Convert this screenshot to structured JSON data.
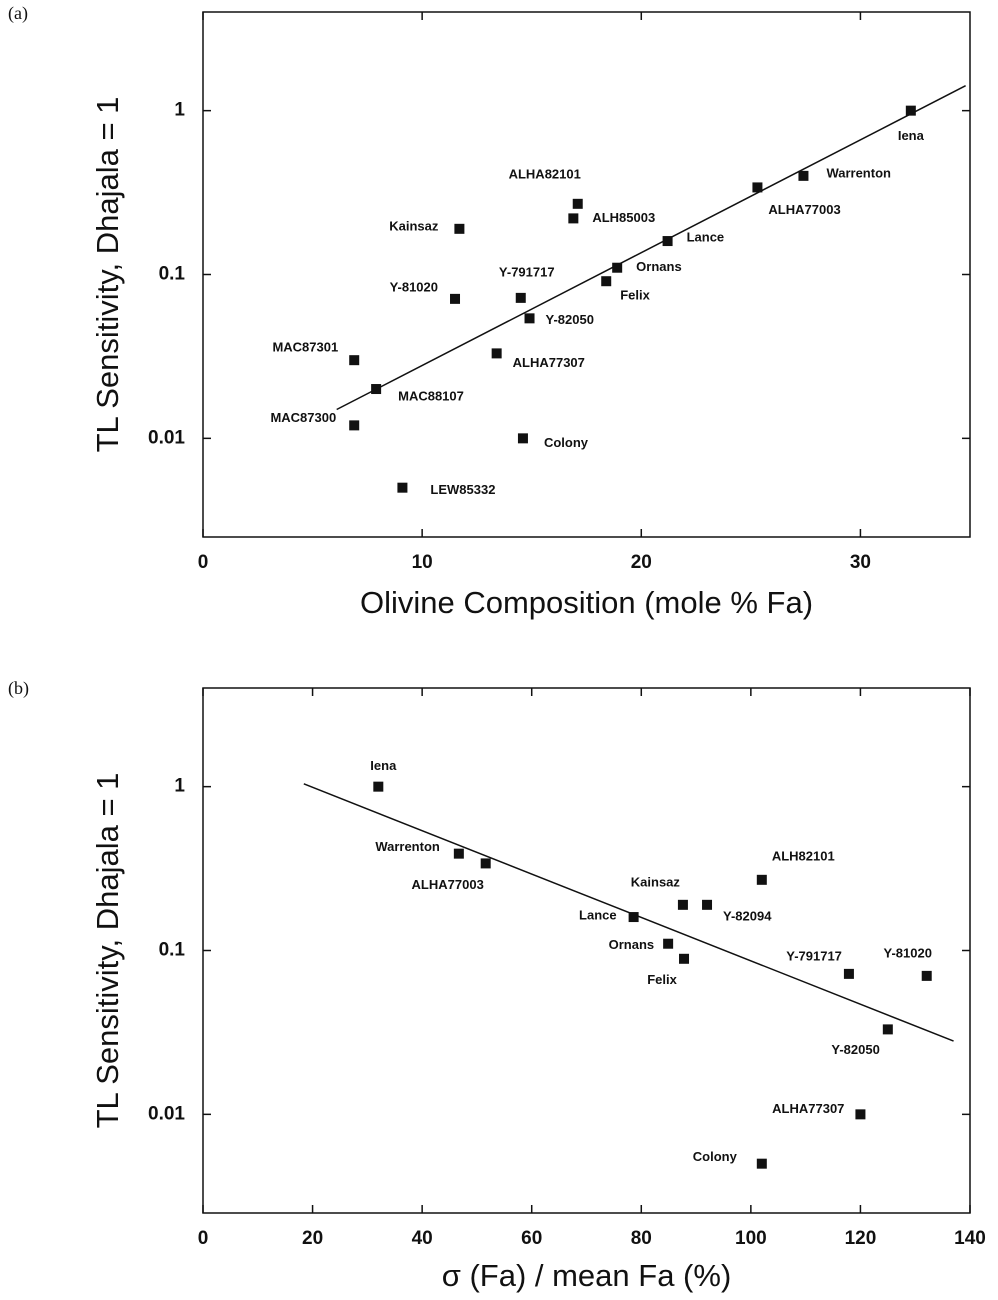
{
  "chart_data": [
    {
      "type": "scatter",
      "panel_label": "(a)",
      "xlabel": "Olivine Composition (mole % Fa)",
      "ylabel": "TL Sensitivity, Dhajala = 1",
      "xlim": [
        0,
        35
      ],
      "ylim": [
        0.0025,
        4
      ],
      "xticks": [
        0,
        10,
        20,
        30
      ],
      "yticks": [
        0.01,
        0.1,
        1
      ],
      "log_y": true,
      "color": "#111111",
      "point_labels": [
        "Iena",
        "Warrenton",
        "ALHA77003",
        "ALHA82101",
        "ALH85003",
        "Kainsaz",
        "Lance",
        "Ornans",
        "Felix",
        "Y-791717",
        "Y-81020",
        "Y-82050",
        "ALHA77307",
        "MAC87301",
        "MAC88107",
        "MAC87300",
        "Colony",
        "LEW85332"
      ],
      "x": [
        32.3,
        27.4,
        25.3,
        17.1,
        16.9,
        11.7,
        21.2,
        18.9,
        18.4,
        14.5,
        11.5,
        14.9,
        13.4,
        6.9,
        7.9,
        6.9,
        14.6,
        9.1
      ],
      "values": [
        1.0,
        0.4,
        0.34,
        0.27,
        0.22,
        0.19,
        0.16,
        0.11,
        0.091,
        0.072,
        0.071,
        0.054,
        0.033,
        0.03,
        0.02,
        0.012,
        0.01,
        0.005
      ],
      "trend": {
        "x": [
          6.1,
          34.8
        ],
        "values": [
          0.015,
          1.42
        ]
      }
    },
    {
      "type": "scatter",
      "panel_label": "(b)",
      "xlabel": "σ (Fa) / mean Fa (%)",
      "ylabel": "TL Sensitivity, Dhajala = 1",
      "xlim": [
        0,
        140
      ],
      "ylim": [
        0.0025,
        4
      ],
      "xticks": [
        0,
        20,
        40,
        60,
        80,
        100,
        120,
        140
      ],
      "yticks": [
        0.01,
        0.1,
        1
      ],
      "log_y": true,
      "color": "#111111",
      "point_labels": [
        "Iena",
        "Warrenton",
        "ALHA77003",
        "ALH82101",
        "Kainsaz",
        "Y-82094",
        "Lance",
        "Ornans",
        "Felix",
        "Y-791717",
        "Y-81020",
        "Y-82050",
        "ALHA77307",
        "Colony"
      ],
      "x": [
        32,
        46.7,
        51.6,
        102,
        87.6,
        92,
        78.6,
        84.9,
        87.8,
        117.9,
        132.1,
        125,
        120,
        102
      ],
      "values": [
        1.0,
        0.39,
        0.34,
        0.27,
        0.19,
        0.19,
        0.16,
        0.11,
        0.089,
        0.072,
        0.07,
        0.033,
        0.01,
        0.005
      ],
      "trend": {
        "x": [
          18.4,
          137
        ],
        "values": [
          1.04,
          0.028
        ]
      }
    }
  ]
}
